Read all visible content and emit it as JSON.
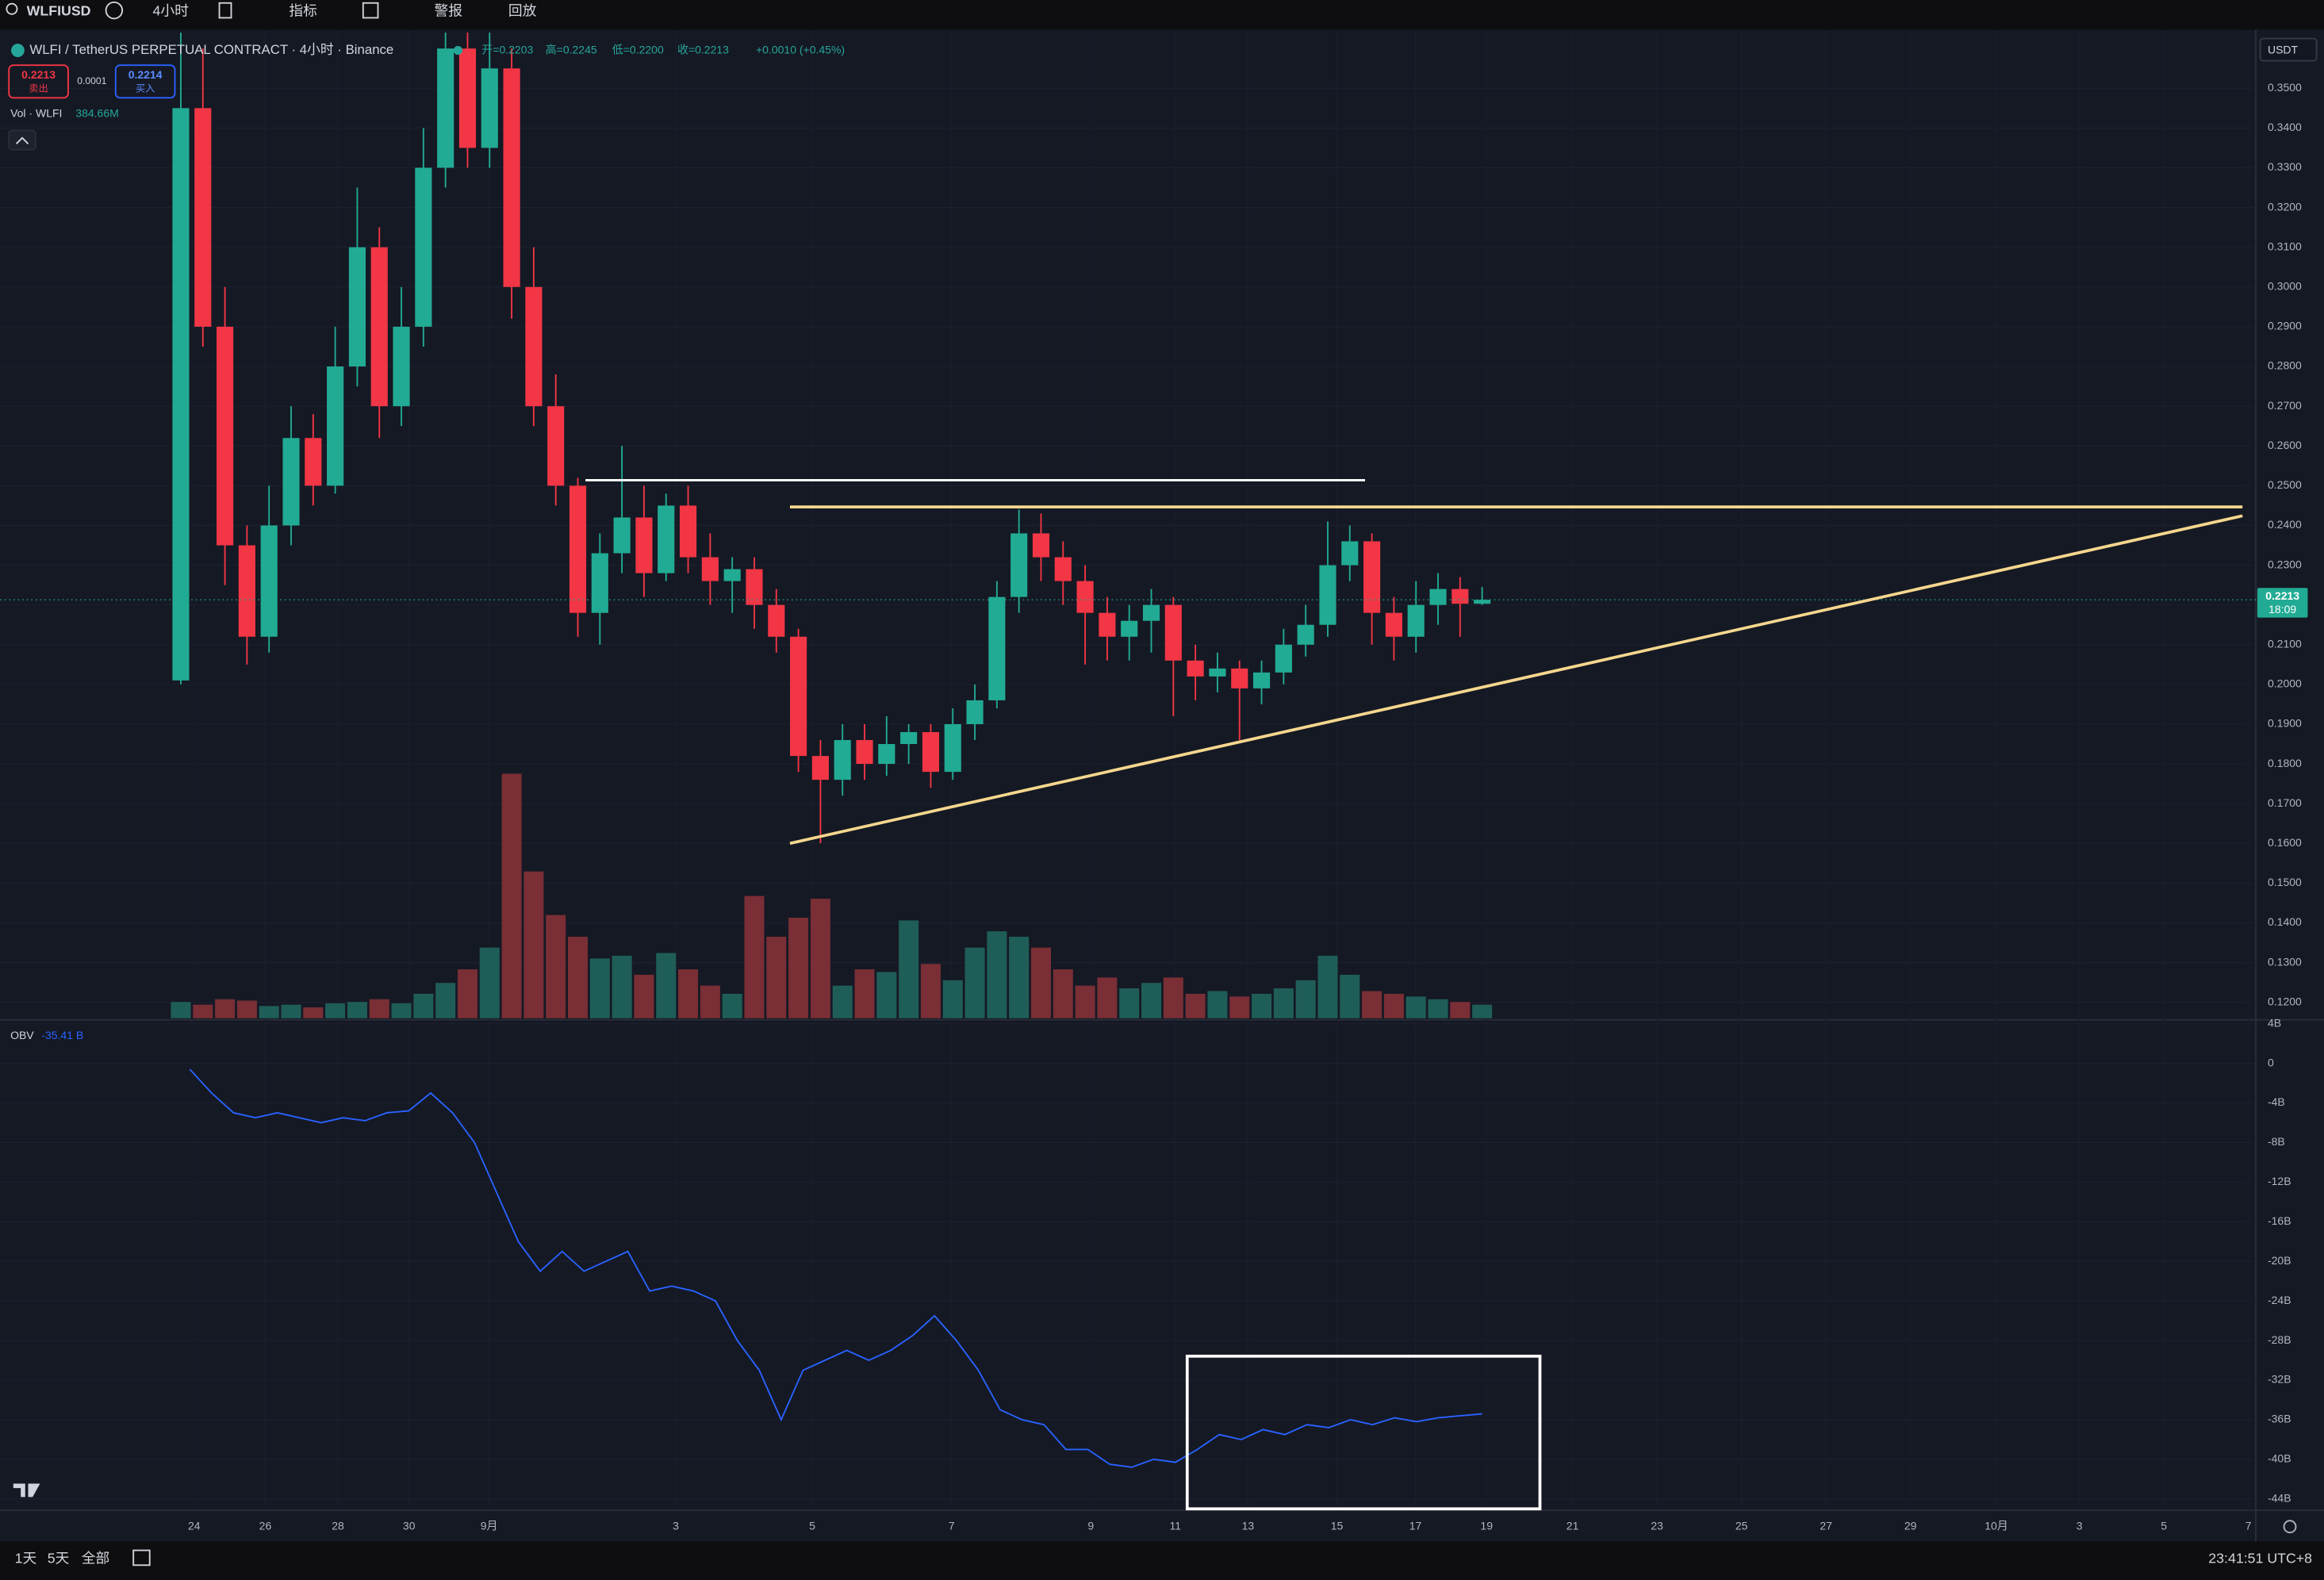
{
  "toolbar": {
    "symbol": "WLFIUSD",
    "interval": "4小时",
    "indicators": "指标",
    "alerts": "警报",
    "replay": "回放"
  },
  "legend": {
    "title": "WLFI / TetherUS PERPETUAL CONTRACT · 4小时 · Binance",
    "open": "开=0.2203",
    "high": "高=0.2245",
    "low": "低=0.2200",
    "close": "收=0.2213",
    "change": "+0.0010 (+0.45%)"
  },
  "trade": {
    "sell_price": "0.2213",
    "sell": "卖出",
    "spread": "0.0001",
    "buy_price": "0.2214",
    "buy": "买入"
  },
  "volume_legend": {
    "name": "Vol · WLFI",
    "value": "384.66M"
  },
  "obv_legend": {
    "name": "OBV",
    "value": "-35.41 B"
  },
  "currency": "USDT",
  "last_price": {
    "price": "0.2213",
    "countdown": "18:09"
  },
  "footer": {
    "ranges": [
      "1天",
      "5天",
      "全部"
    ],
    "clock": "23:41:51 UTC+8"
  },
  "chart_data": [
    {
      "type": "candlestick",
      "open": [
        0.201,
        0.345,
        0.29,
        0.235,
        0.212,
        0.24,
        0.262,
        0.25,
        0.28,
        0.31,
        0.27,
        0.29,
        0.33,
        0.36,
        0.335,
        0.355,
        0.3,
        0.27,
        0.25,
        0.218,
        0.233,
        0.242,
        0.228,
        0.245,
        0.232,
        0.226,
        0.229,
        0.22,
        0.212,
        0.182,
        0.176,
        0.186,
        0.18,
        0.185,
        0.188,
        0.178,
        0.19,
        0.196,
        0.222,
        0.238,
        0.232,
        0.226,
        0.218,
        0.212,
        0.216,
        0.22,
        0.206,
        0.202,
        0.204,
        0.199,
        0.203,
        0.21,
        0.215,
        0.23,
        0.236,
        0.218,
        0.212,
        0.22,
        0.224,
        0.2203
      ],
      "high": [
        0.364,
        0.36,
        0.3,
        0.24,
        0.25,
        0.27,
        0.268,
        0.29,
        0.325,
        0.315,
        0.3,
        0.34,
        0.364,
        0.364,
        0.364,
        0.36,
        0.31,
        0.278,
        0.252,
        0.238,
        0.26,
        0.25,
        0.248,
        0.25,
        0.238,
        0.232,
        0.232,
        0.224,
        0.214,
        0.186,
        0.19,
        0.19,
        0.192,
        0.19,
        0.19,
        0.194,
        0.2,
        0.226,
        0.244,
        0.243,
        0.236,
        0.23,
        0.222,
        0.22,
        0.224,
        0.222,
        0.21,
        0.208,
        0.206,
        0.206,
        0.214,
        0.22,
        0.241,
        0.24,
        0.238,
        0.222,
        0.226,
        0.228,
        0.227,
        0.2245
      ],
      "low": [
        0.2,
        0.285,
        0.225,
        0.205,
        0.208,
        0.235,
        0.245,
        0.248,
        0.275,
        0.262,
        0.265,
        0.285,
        0.325,
        0.33,
        0.33,
        0.292,
        0.265,
        0.245,
        0.212,
        0.21,
        0.228,
        0.222,
        0.226,
        0.228,
        0.22,
        0.218,
        0.214,
        0.208,
        0.178,
        0.16,
        0.172,
        0.176,
        0.177,
        0.18,
        0.174,
        0.176,
        0.186,
        0.194,
        0.218,
        0.226,
        0.22,
        0.205,
        0.206,
        0.206,
        0.208,
        0.192,
        0.196,
        0.198,
        0.186,
        0.195,
        0.2,
        0.207,
        0.212,
        0.226,
        0.21,
        0.206,
        0.208,
        0.215,
        0.212,
        0.22
      ],
      "close": [
        0.345,
        0.29,
        0.235,
        0.212,
        0.24,
        0.262,
        0.25,
        0.28,
        0.31,
        0.27,
        0.29,
        0.33,
        0.36,
        0.335,
        0.355,
        0.3,
        0.27,
        0.25,
        0.218,
        0.233,
        0.242,
        0.228,
        0.245,
        0.232,
        0.226,
        0.229,
        0.22,
        0.212,
        0.182,
        0.176,
        0.186,
        0.18,
        0.185,
        0.188,
        0.178,
        0.19,
        0.196,
        0.222,
        0.238,
        0.232,
        0.226,
        0.218,
        0.212,
        0.216,
        0.22,
        0.206,
        0.202,
        0.204,
        0.199,
        0.203,
        0.21,
        0.215,
        0.23,
        0.236,
        0.218,
        0.212,
        0.22,
        0.224,
        0.2203,
        0.2213
      ],
      "volume": [
        60,
        50,
        70,
        65,
        45,
        50,
        40,
        55,
        60,
        70,
        55,
        90,
        130,
        180,
        260,
        900,
        540,
        380,
        300,
        220,
        230,
        160,
        240,
        180,
        120,
        90,
        450,
        300,
        370,
        440,
        120,
        180,
        170,
        360,
        200,
        140,
        260,
        320,
        300,
        260,
        180,
        120,
        150,
        110,
        130,
        150,
        90,
        100,
        80,
        90,
        110,
        140,
        230,
        160,
        100,
        90,
        80,
        70,
        60,
        50
      ],
      "ylim": [
        0.116,
        0.364
      ],
      "yticks": [
        {
          "value": 0.12,
          "label": "0.1200"
        },
        {
          "value": 0.13,
          "label": "0.1300"
        },
        {
          "value": 0.14,
          "label": "0.1400"
        },
        {
          "value": 0.15,
          "label": "0.1500"
        },
        {
          "value": 0.16,
          "label": "0.1600"
        },
        {
          "value": 0.17,
          "label": "0.1700"
        },
        {
          "value": 0.18,
          "label": "0.1800"
        },
        {
          "value": 0.19,
          "label": "0.1900"
        },
        {
          "value": 0.2,
          "label": "0.2000"
        },
        {
          "value": 0.21,
          "label": "0.2100"
        },
        {
          "value": 0.22,
          "label": "0.2200"
        },
        {
          "value": 0.23,
          "label": "0.2300"
        },
        {
          "value": 0.24,
          "label": "0.2400"
        },
        {
          "value": 0.25,
          "label": "0.2500"
        },
        {
          "value": 0.26,
          "label": "0.2600"
        },
        {
          "value": 0.27,
          "label": "0.2700"
        },
        {
          "value": 0.28,
          "label": "0.2800"
        },
        {
          "value": 0.29,
          "label": "0.2900"
        },
        {
          "value": 0.3,
          "label": "0.3000"
        },
        {
          "value": 0.31,
          "label": "0.3100"
        },
        {
          "value": 0.32,
          "label": "0.3200"
        },
        {
          "value": 0.33,
          "label": "0.3300"
        },
        {
          "value": 0.34,
          "label": "0.3400"
        },
        {
          "value": 0.35,
          "label": "0.3500"
        }
      ],
      "x_labels": [
        "24",
        "26",
        "28",
        "30",
        "9月",
        "3",
        "5",
        "7",
        "9",
        "11",
        "13",
        "15",
        "17",
        "19",
        "21",
        "23",
        "25",
        "27",
        "29",
        "10月",
        "3",
        "5",
        "7"
      ]
    },
    {
      "type": "line",
      "name": "OBV",
      "color": "#2962ff",
      "values": [
        -0.6,
        -3,
        -5,
        -5.5,
        -5,
        -5.5,
        -6,
        -5.5,
        -5.8,
        -5,
        -4.8,
        -3,
        -5,
        -8,
        -13,
        -18,
        -21,
        -19,
        -21,
        -20,
        -19,
        -23,
        -22.5,
        -23,
        -24,
        -28,
        -31,
        -36,
        -31,
        -30,
        -29,
        -30,
        -29,
        -27.5,
        -25.5,
        -28,
        -31,
        -35,
        -36,
        -36.5,
        -39,
        -39,
        -40.5,
        -40.8,
        -40,
        -40.3,
        -39,
        -37.5,
        -38,
        -37,
        -37.5,
        -36.5,
        -36.8,
        -36,
        -36.5,
        -35.8,
        -36.2,
        -35.8,
        -35.6,
        -35.41
      ],
      "ylim": [
        -45.3,
        4.4
      ],
      "yticks": [
        {
          "value": 4,
          "label": "4B"
        },
        0,
        {
          "value": -4,
          "label": "-4B"
        },
        {
          "value": -8,
          "label": "-8B"
        },
        {
          "value": -12,
          "label": "-12B"
        },
        {
          "value": -16,
          "label": "-16B"
        },
        {
          "value": -20,
          "label": "-20B"
        },
        {
          "value": -24,
          "label": "-24B"
        },
        {
          "value": -28,
          "label": "-28B"
        },
        {
          "value": -32,
          "label": "-32B"
        },
        {
          "value": -36,
          "label": "-36B"
        },
        {
          "value": -40,
          "label": "-40B"
        },
        {
          "value": -44,
          "label": "-44B"
        }
      ]
    }
  ]
}
